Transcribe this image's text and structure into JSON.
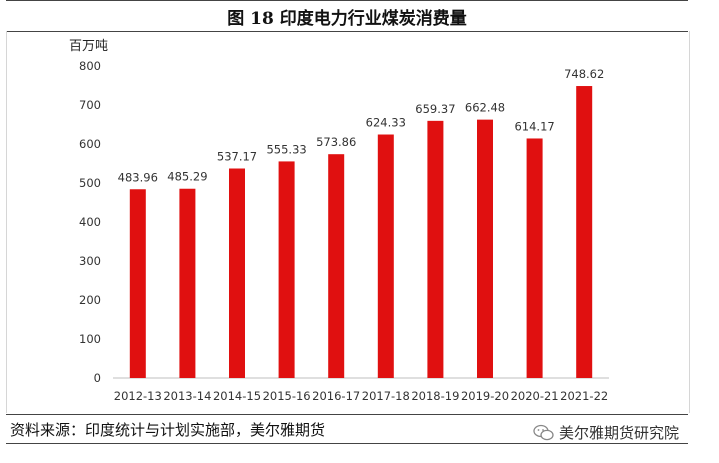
{
  "figure": {
    "title": "图 18  印度电力行业煤炭消费量",
    "source": "资料来源：印度统计与计划实施部，美尔雅期货",
    "watermark": "美尔雅期货研究院",
    "watermark_icon": "wechat-icon"
  },
  "chart_data": {
    "type": "bar",
    "title": "图 18  印度电力行业煤炭消费量",
    "ylabel": "百万吨",
    "xlabel": "",
    "categories": [
      "2012-13",
      "2013-14",
      "2014-15",
      "2015-16",
      "2016-17",
      "2017-18",
      "2018-19",
      "2019-20",
      "2020-21",
      "2021-22"
    ],
    "values": [
      483.96,
      485.29,
      537.17,
      555.33,
      573.86,
      624.33,
      659.37,
      662.48,
      614.17,
      748.62
    ],
    "value_labels": [
      "483.96",
      "485.29",
      "537.17",
      "555.33",
      "573.86",
      "624.33",
      "659.37",
      "662.48",
      "614.17",
      "748.62"
    ],
    "ylim": [
      0,
      800
    ],
    "yticks": [
      "0",
      "100",
      "200",
      "300",
      "400",
      "500",
      "600",
      "700",
      "800"
    ],
    "grid": false,
    "bar_color": "#e01010",
    "axis_color": "#bfbfbf",
    "legend": "none"
  }
}
